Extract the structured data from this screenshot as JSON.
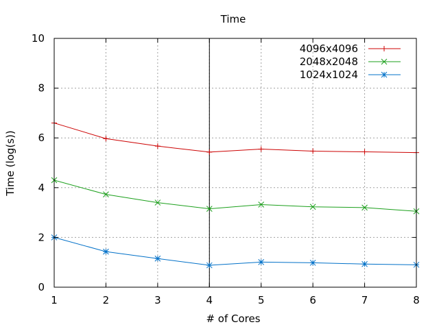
{
  "chart_data": {
    "type": "line",
    "title": "Time",
    "xlabel": "# of Cores",
    "ylabel": "Time (log(s))",
    "xlim": [
      1,
      8
    ],
    "ylim": [
      0,
      10
    ],
    "x": [
      1,
      2,
      3,
      4,
      5,
      6,
      7,
      8
    ],
    "x_ticks": [
      "1",
      "2",
      "3",
      "4",
      "5",
      "6",
      "7",
      "8"
    ],
    "y_ticks": [
      "0",
      "2",
      "4",
      "6",
      "8",
      "10"
    ],
    "y_tick_values": [
      0,
      2,
      4,
      6,
      8,
      10
    ],
    "grid": true,
    "legend_position": "top-right",
    "reference_line_x": 4,
    "series": [
      {
        "name": "4096x4096",
        "color": "#cc0000",
        "marker": "plus",
        "values": [
          6.6,
          5.97,
          5.67,
          5.43,
          5.55,
          5.47,
          5.44,
          5.41
        ]
      },
      {
        "name": "2048x2048",
        "color": "#1a9f1a",
        "marker": "cross",
        "values": [
          4.3,
          3.73,
          3.4,
          3.15,
          3.32,
          3.23,
          3.2,
          3.05
        ]
      },
      {
        "name": "1024x1024",
        "color": "#0070c8",
        "marker": "star",
        "values": [
          2.0,
          1.43,
          1.15,
          0.88,
          1.01,
          0.98,
          0.93,
          0.9
        ]
      }
    ]
  }
}
